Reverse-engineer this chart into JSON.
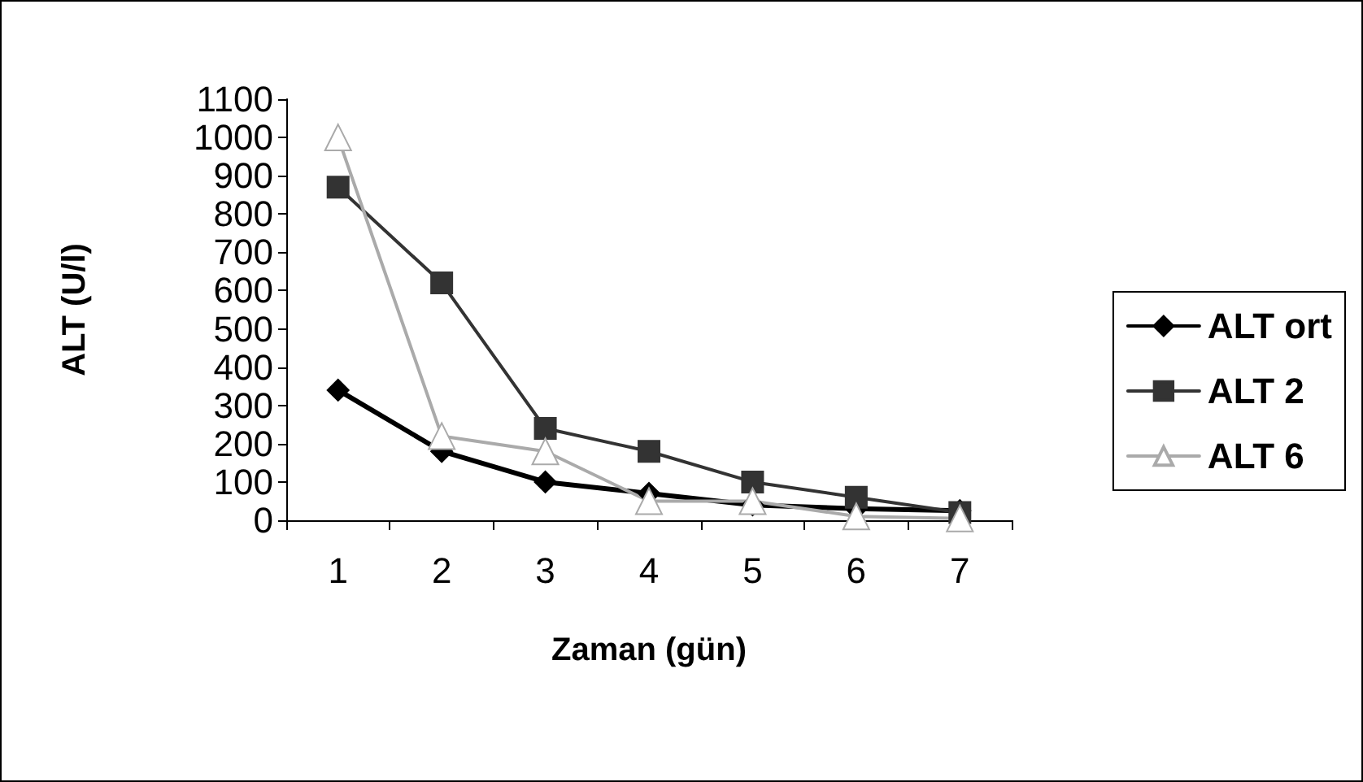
{
  "chart_data": {
    "type": "line",
    "xlabel": "Zaman (gün)",
    "ylabel": "ALT (U/l)",
    "categories": [
      "1",
      "2",
      "3",
      "4",
      "5",
      "6",
      "7"
    ],
    "ylim": [
      0,
      1100
    ],
    "yticks": [
      0,
      100,
      200,
      300,
      400,
      500,
      600,
      700,
      800,
      900,
      1000,
      1100
    ],
    "grid": false,
    "legend": "right",
    "series": [
      {
        "name": "ALT ort",
        "color": "#000000",
        "marker": "diamond",
        "values": [
          340,
          180,
          100,
          70,
          40,
          30,
          25
        ]
      },
      {
        "name": "ALT 2",
        "color": "#333333",
        "marker": "square",
        "values": [
          870,
          620,
          240,
          180,
          100,
          60,
          20
        ]
      },
      {
        "name": "ALT 6",
        "color": "#aaaaaa",
        "marker": "triangle",
        "values": [
          1000,
          220,
          180,
          50,
          50,
          10,
          5
        ]
      }
    ]
  }
}
